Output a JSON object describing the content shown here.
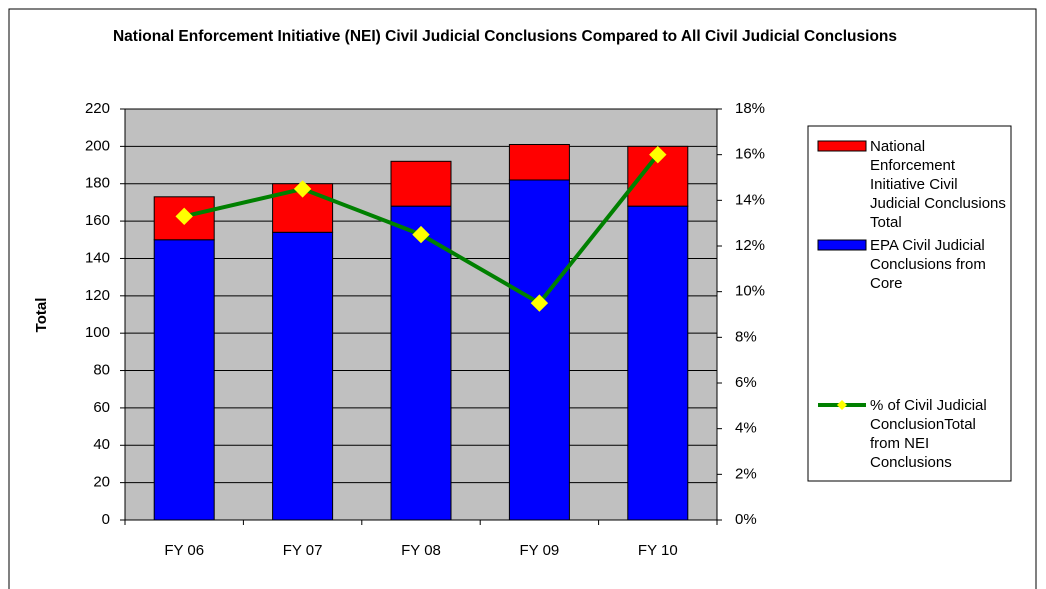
{
  "chart_data": {
    "type": "bar",
    "title": "National Enforcement Initiative (NEI) Civil Judicial Conclusions Compared to All Civil Judicial Conclusions",
    "ylabel": "Total",
    "categories": [
      "FY 06",
      "FY 07",
      "FY 08",
      "FY 09",
      "FY 10"
    ],
    "stacked": true,
    "series": [
      {
        "name": "EPA Civil Judicial Conclusions from Core",
        "color": "#0000ff",
        "values": [
          150,
          154,
          168,
          182,
          168
        ]
      },
      {
        "name": "National Enforcement Initiative Civil Judicial Conclusions Total",
        "color": "#ff0000",
        "values": [
          23,
          26,
          24,
          19,
          32
        ]
      },
      {
        "name": "% of Civil Judicial ConclusionTotal from NEI Conclusions",
        "type": "line",
        "axis": "y2",
        "color": "#008000",
        "marker_color": "#ffff00",
        "values": [
          13.3,
          14.5,
          12.5,
          9.5,
          16
        ]
      }
    ],
    "legend_order": [
      1,
      0,
      2
    ],
    "ylim": [
      0,
      220
    ],
    "yticks": [
      0,
      20,
      40,
      60,
      80,
      100,
      120,
      140,
      160,
      180,
      200,
      220
    ],
    "y2lim": [
      0,
      18
    ],
    "y2ticks": [
      {
        "value": 0,
        "label": "0%"
      },
      {
        "value": 2,
        "label": "2%"
      },
      {
        "value": 4,
        "label": "4%"
      },
      {
        "value": 6,
        "label": "6%"
      },
      {
        "value": 8,
        "label": "8%"
      },
      {
        "value": 10,
        "label": "10%"
      },
      {
        "value": 12,
        "label": "12%"
      },
      {
        "value": 14,
        "label": "14%"
      },
      {
        "value": 16,
        "label": "16%"
      },
      {
        "value": 18,
        "label": "18%"
      }
    ],
    "grid": true,
    "legend": "right"
  }
}
